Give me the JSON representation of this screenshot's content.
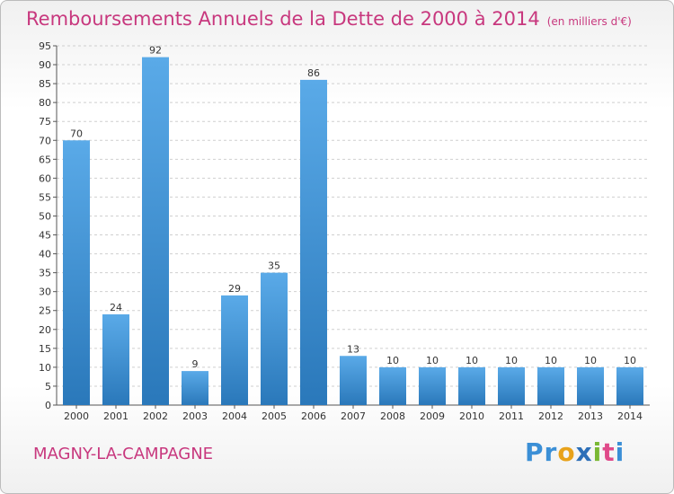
{
  "title": "Remboursements Annuels de la Dette de 2000 à 2014",
  "title_unit": "(en milliers d'€)",
  "place_name": "MAGNY-LA-CAMPAGNE",
  "logo": {
    "text": "Proxiti",
    "letters": [
      {
        "ch": "P",
        "color": "#3b8fd6"
      },
      {
        "ch": "r",
        "color": "#3b8fd6"
      },
      {
        "ch": "o",
        "color": "#e8a21a"
      },
      {
        "ch": "x",
        "color": "#2d6fb8"
      },
      {
        "ch": "i",
        "color": "#7ab833"
      },
      {
        "ch": "t",
        "color": "#e04a8a"
      },
      {
        "ch": "i",
        "color": "#3b8fd6"
      }
    ]
  },
  "colors": {
    "bar_light": "#5aaae8",
    "bar_dark": "#2a78ba",
    "title": "#c8387e",
    "grid": "#cfcfcf"
  },
  "chart_data": {
    "type": "bar",
    "categories": [
      "2000",
      "2001",
      "2002",
      "2003",
      "2004",
      "2005",
      "2006",
      "2007",
      "2008",
      "2009",
      "2010",
      "2011",
      "2012",
      "2013",
      "2014"
    ],
    "values": [
      70,
      24,
      92,
      9,
      29,
      35,
      86,
      13,
      10,
      10,
      10,
      10,
      10,
      10,
      10
    ],
    "ylim": [
      0,
      95
    ],
    "yticks": [
      0,
      5,
      10,
      15,
      20,
      25,
      30,
      35,
      40,
      45,
      50,
      55,
      60,
      65,
      70,
      75,
      80,
      85,
      90,
      95
    ],
    "grid": true,
    "data_labels": true
  }
}
